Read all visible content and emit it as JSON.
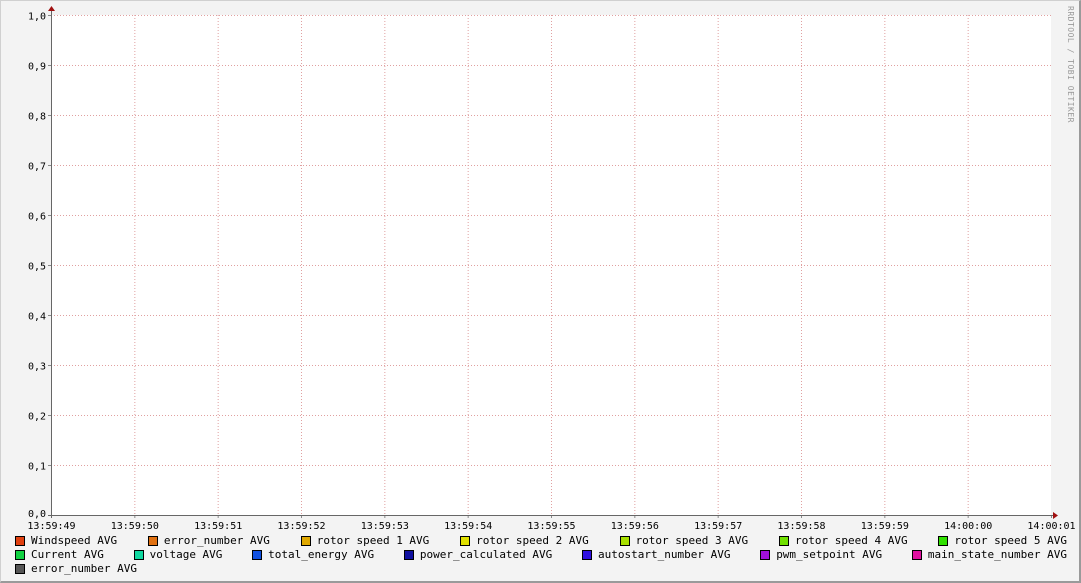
{
  "watermark": "RRDTOOL / TOBI OETIKER",
  "chart_data": {
    "type": "line",
    "title": "",
    "xlabel": "",
    "ylabel": "",
    "ylim": [
      0,
      1
    ],
    "yticks": [
      "0,0",
      "0,1",
      "0,2",
      "0,3",
      "0,4",
      "0,5",
      "0,6",
      "0,7",
      "0,8",
      "0,9",
      "1,0"
    ],
    "xticks": [
      "13:59:49",
      "13:59:50",
      "13:59:51",
      "13:59:52",
      "13:59:53",
      "13:59:54",
      "13:59:55",
      "13:59:56",
      "13:59:57",
      "13:59:58",
      "13:59:59",
      "14:00:00",
      "14:00:01"
    ],
    "grid": true,
    "legend_placement": "bottom",
    "series": [
      {
        "name": "Windspeed AVG",
        "color": "#e04010",
        "values": []
      },
      {
        "name": "error_number AVG",
        "color": "#e07010",
        "values": []
      },
      {
        "name": "rotor speed 1 AVG",
        "color": "#e0a800",
        "values": []
      },
      {
        "name": "rotor speed 2 AVG",
        "color": "#e0e000",
        "values": []
      },
      {
        "name": "rotor speed 3 AVG",
        "color": "#a8e000",
        "values": []
      },
      {
        "name": "rotor speed 4 AVG",
        "color": "#70e000",
        "values": []
      },
      {
        "name": "rotor speed 5 AVG",
        "color": "#30e000",
        "values": []
      },
      {
        "name": "Current AVG",
        "color": "#10d040",
        "values": []
      },
      {
        "name": "voltage AVG",
        "color": "#10d8a0",
        "values": []
      },
      {
        "name": "total_energy AVG",
        "color": "#1050e0",
        "values": []
      },
      {
        "name": "power_calculated AVG",
        "color": "#1010a0",
        "values": []
      },
      {
        "name": "autostart_number AVG",
        "color": "#3010e0",
        "values": []
      },
      {
        "name": "pwm_setpoint AVG",
        "color": "#a010d8",
        "values": []
      },
      {
        "name": "main_state_number AVG",
        "color": "#e010a0",
        "values": []
      },
      {
        "name": "error_number AVG",
        "color": "#555555",
        "values": []
      }
    ]
  }
}
